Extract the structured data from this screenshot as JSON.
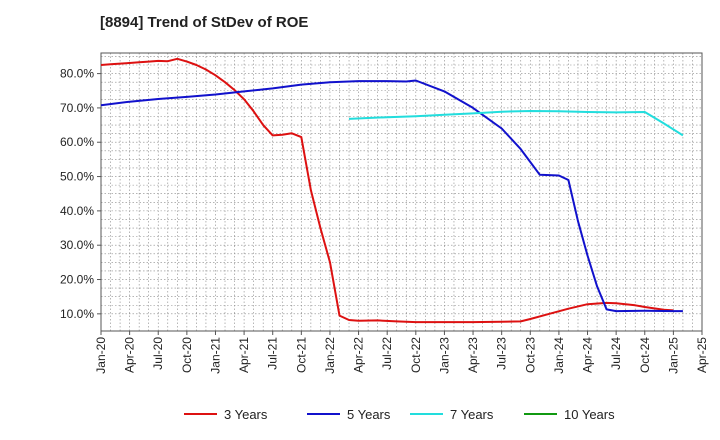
{
  "title": "[8894]  Trend of StDev of ROE",
  "chart_data": {
    "type": "line",
    "title": "[8894]  Trend of StDev of ROE",
    "xlabel": "",
    "ylabel": "",
    "grid": true,
    "legend_position": "bottom",
    "x_ticks": [
      "Jan-20",
      "Apr-20",
      "Jul-20",
      "Oct-20",
      "Jan-21",
      "Apr-21",
      "Jul-21",
      "Oct-21",
      "Jan-22",
      "Apr-22",
      "Jul-22",
      "Oct-22",
      "Jan-23",
      "Apr-23",
      "Jul-23",
      "Oct-23",
      "Jan-24",
      "Apr-24",
      "Jul-24",
      "Oct-24",
      "Jan-25",
      "Apr-25"
    ],
    "y_ticks": [
      "10.0%",
      "20.0%",
      "30.0%",
      "40.0%",
      "50.0%",
      "60.0%",
      "70.0%",
      "80.0%"
    ],
    "ylim": [
      5,
      86
    ],
    "series": [
      {
        "name": "3 Years",
        "color": "#dd1111",
        "points": [
          [
            "Jan-20",
            82.5
          ],
          [
            "Feb-20",
            82.7
          ],
          [
            "Mar-20",
            82.9
          ],
          [
            "Apr-20",
            83.1
          ],
          [
            "May-20",
            83.3
          ],
          [
            "Jun-20",
            83.5
          ],
          [
            "Jul-20",
            83.7
          ],
          [
            "Aug-20",
            83.6
          ],
          [
            "Sep-20",
            84.3
          ],
          [
            "Oct-20",
            83.5
          ],
          [
            "Nov-20",
            82.5
          ],
          [
            "Dec-20",
            81.2
          ],
          [
            "Jan-21",
            79.5
          ],
          [
            "Feb-21",
            77.5
          ],
          [
            "Mar-21",
            75.2
          ],
          [
            "Apr-21",
            72.5
          ],
          [
            "May-21",
            69.0
          ],
          [
            "Jun-21",
            65.0
          ],
          [
            "Jul-21",
            62.0
          ],
          [
            "Aug-21",
            62.2
          ],
          [
            "Sep-21",
            62.6
          ],
          [
            "Oct-21",
            61.5
          ],
          [
            "Nov-21",
            46.0
          ],
          [
            "Dec-21",
            35.0
          ],
          [
            "Jan-22",
            25.0
          ],
          [
            "Feb-22",
            9.5
          ],
          [
            "Mar-22",
            8.2
          ],
          [
            "Apr-22",
            8.0
          ],
          [
            "Jun-22",
            8.1
          ],
          [
            "Aug-22",
            7.8
          ],
          [
            "Oct-22",
            7.6
          ],
          [
            "Jan-23",
            7.6
          ],
          [
            "Apr-23",
            7.6
          ],
          [
            "Jul-23",
            7.7
          ],
          [
            "Sep-23",
            7.8
          ],
          [
            "Oct-23",
            8.5
          ],
          [
            "Dec-23",
            10.0
          ],
          [
            "Feb-24",
            11.5
          ],
          [
            "Apr-24",
            12.8
          ],
          [
            "Jun-24",
            13.2
          ],
          [
            "Jul-24",
            13.1
          ],
          [
            "Sep-24",
            12.5
          ],
          [
            "Oct-24",
            12.0
          ],
          [
            "Dec-24",
            11.2
          ],
          [
            "Jan-25",
            11.0
          ]
        ]
      },
      {
        "name": "5 Years",
        "color": "#1111cc",
        "points": [
          [
            "Jan-20",
            70.8
          ],
          [
            "Apr-20",
            71.8
          ],
          [
            "Jul-20",
            72.6
          ],
          [
            "Oct-20",
            73.2
          ],
          [
            "Jan-21",
            73.9
          ],
          [
            "Apr-21",
            74.8
          ],
          [
            "Jul-21",
            75.7
          ],
          [
            "Oct-21",
            76.8
          ],
          [
            "Jan-22",
            77.5
          ],
          [
            "Apr-22",
            77.8
          ],
          [
            "Jul-22",
            77.8
          ],
          [
            "Sep-22",
            77.7
          ],
          [
            "Oct-22",
            78.0
          ],
          [
            "Jan-23",
            74.8
          ],
          [
            "Apr-23",
            70.0
          ],
          [
            "Jul-23",
            64.0
          ],
          [
            "Sep-23",
            58.0
          ],
          [
            "Nov-23",
            50.5
          ],
          [
            "Jan-24",
            50.3
          ],
          [
            "Feb-24",
            49.0
          ],
          [
            "Mar-24",
            37.0
          ],
          [
            "Apr-24",
            27.0
          ],
          [
            "May-24",
            18.0
          ],
          [
            "Jun-24",
            11.3
          ],
          [
            "Jul-24",
            10.8
          ],
          [
            "Oct-24",
            10.9
          ],
          [
            "Jan-25",
            10.8
          ],
          [
            "Feb-25",
            10.8
          ]
        ]
      },
      {
        "name": "7 Years",
        "color": "#22dddd",
        "points": [
          [
            "Mar-22",
            66.8
          ],
          [
            "Jul-22",
            67.3
          ],
          [
            "Oct-22",
            67.6
          ],
          [
            "Jan-23",
            68.0
          ],
          [
            "Apr-23",
            68.4
          ],
          [
            "Jul-23",
            68.9
          ],
          [
            "Oct-23",
            69.1
          ],
          [
            "Jan-24",
            69.0
          ],
          [
            "Apr-24",
            68.8
          ],
          [
            "Jul-24",
            68.7
          ],
          [
            "Oct-24",
            68.8
          ],
          [
            "Dec-24",
            65.5
          ],
          [
            "Feb-25",
            62.0
          ]
        ]
      },
      {
        "name": "10 Years",
        "color": "#119911",
        "points": []
      }
    ]
  }
}
